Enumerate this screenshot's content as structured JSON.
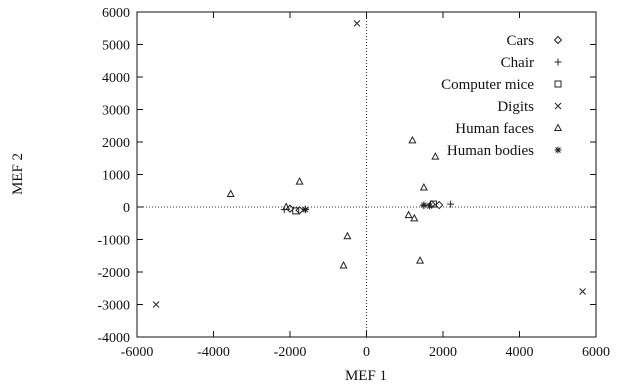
{
  "chart_data": {
    "type": "scatter",
    "xlabel": "MEF 1",
    "ylabel": "MEF 2",
    "xlim": [
      -6000,
      6000
    ],
    "ylim": [
      -4000,
      6000
    ],
    "xticks": [
      -6000,
      -4000,
      -2000,
      0,
      2000,
      4000,
      6000
    ],
    "yticks": [
      -4000,
      -3000,
      -2000,
      -1000,
      0,
      1000,
      2000,
      3000,
      4000,
      5000,
      6000
    ],
    "xtick_labels": [
      "-6000",
      "-4000",
      "-2000",
      "0",
      "2000",
      "4000",
      "6000"
    ],
    "ytick_labels": [
      "-4000",
      "-3000",
      "-2000",
      "-1000",
      "0",
      "1000",
      "2000",
      "3000",
      "4000",
      "5000",
      "6000"
    ],
    "zero_lines": "dotted",
    "legend_position": "top-right",
    "color": "#222222",
    "series": [
      {
        "name": "Cars",
        "marker": "diamond",
        "points": [
          [
            -2000,
            -50
          ],
          [
            -1750,
            -100
          ],
          [
            1700,
            80
          ],
          [
            1900,
            60
          ]
        ]
      },
      {
        "name": "Chair",
        "marker": "plus",
        "points": [
          [
            -2150,
            -80
          ],
          [
            -1600,
            -60
          ],
          [
            2200,
            90
          ],
          [
            1500,
            40
          ]
        ]
      },
      {
        "name": "Computer mice",
        "marker": "square",
        "points": [
          [
            -1850,
            -120
          ],
          [
            1750,
            90
          ]
        ]
      },
      {
        "name": "Digits",
        "marker": "cross",
        "points": [
          [
            -250,
            5650
          ],
          [
            -5500,
            -3000
          ],
          [
            5650,
            -2600
          ]
        ]
      },
      {
        "name": "Human faces",
        "marker": "triangle",
        "points": [
          [
            -3550,
            400
          ],
          [
            -1750,
            780
          ],
          [
            -2100,
            0
          ],
          [
            -500,
            -900
          ],
          [
            -600,
            -1800
          ],
          [
            1200,
            2050
          ],
          [
            1800,
            1550
          ],
          [
            1500,
            600
          ],
          [
            1100,
            -250
          ],
          [
            1250,
            -350
          ],
          [
            1400,
            -1650
          ]
        ]
      },
      {
        "name": "Human bodies",
        "marker": "asterisk",
        "points": [
          [
            -1600,
            -80
          ],
          [
            1500,
            60
          ],
          [
            1650,
            30
          ]
        ]
      }
    ]
  }
}
